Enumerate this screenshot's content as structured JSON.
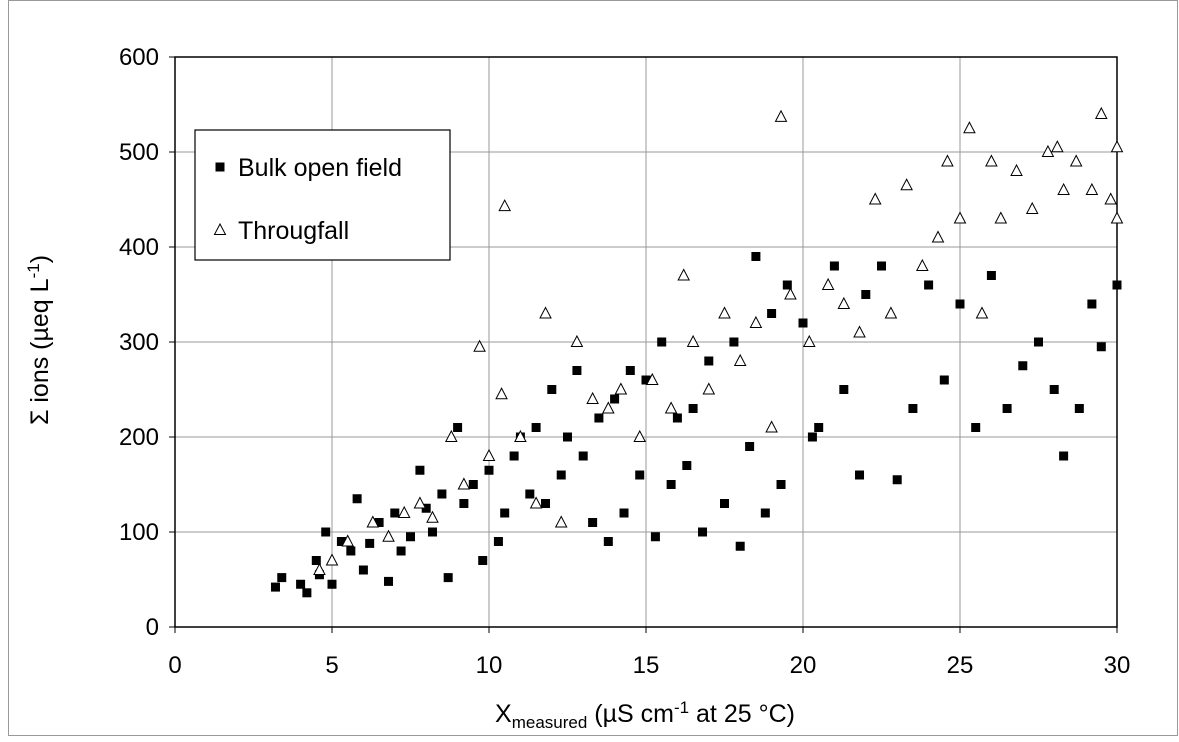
{
  "chart_data": {
    "type": "scatter",
    "xlabel": {
      "main": "X",
      "sub": "measured",
      "rest": " (µS cm",
      "sup": "-1",
      "end": " at 25 °C)"
    },
    "ylabel": {
      "main": "Σ ions  (µeq L",
      "sup": "-1",
      "end": ")"
    },
    "xlim": [
      0,
      30
    ],
    "xticks": [
      0,
      5,
      10,
      15,
      20,
      25,
      30
    ],
    "ylim": [
      0,
      600
    ],
    "yticks": [
      0,
      100,
      200,
      300,
      400,
      500,
      600
    ],
    "grid": true,
    "legend": "upper left",
    "series": [
      {
        "name": "Bulk open field",
        "color": "#000000",
        "marker": "square",
        "x": [
          3.2,
          3.4,
          4.0,
          4.2,
          4.5,
          4.6,
          4.8,
          5.0,
          5.3,
          5.6,
          5.8,
          6.0,
          6.2,
          6.5,
          6.8,
          7.0,
          7.2,
          7.5,
          7.8,
          8.0,
          8.2,
          8.5,
          8.7,
          9.0,
          9.2,
          9.5,
          9.8,
          10.0,
          10.3,
          10.5,
          10.8,
          11.0,
          11.3,
          11.5,
          11.8,
          12.0,
          12.3,
          12.5,
          12.8,
          13.0,
          13.3,
          13.5,
          13.8,
          14.0,
          14.3,
          14.5,
          14.8,
          15.0,
          15.3,
          15.5,
          15.8,
          16.0,
          16.3,
          16.5,
          16.8,
          17.0,
          17.5,
          17.8,
          18.0,
          18.3,
          18.5,
          18.8,
          19.0,
          19.3,
          19.5,
          20.0,
          20.3,
          20.5,
          21.0,
          21.3,
          21.8,
          22.0,
          22.5,
          23.0,
          23.5,
          24.0,
          24.5,
          25.0,
          25.5,
          26.0,
          26.5,
          27.0,
          27.5,
          28.0,
          28.3,
          28.8,
          29.2,
          29.5,
          30.0
        ],
        "values": [
          42,
          52,
          45,
          36,
          70,
          55,
          100,
          45,
          90,
          80,
          135,
          60,
          88,
          110,
          48,
          120,
          80,
          95,
          165,
          125,
          100,
          140,
          52,
          210,
          130,
          150,
          70,
          165,
          90,
          120,
          180,
          200,
          140,
          210,
          130,
          250,
          160,
          200,
          270,
          180,
          110,
          220,
          90,
          240,
          120,
          270,
          160,
          260,
          95,
          300,
          150,
          220,
          170,
          230,
          100,
          280,
          130,
          300,
          85,
          190,
          390,
          120,
          330,
          150,
          360,
          320,
          200,
          210,
          380,
          250,
          160,
          350,
          380,
          155,
          230,
          360,
          260,
          340,
          210,
          370,
          230,
          275,
          300,
          250,
          180,
          230,
          340,
          295,
          360
        ]
      },
      {
        "name": "Througfall",
        "color": "#000000",
        "marker": "triangle",
        "x": [
          4.6,
          5.0,
          5.5,
          6.3,
          6.8,
          7.3,
          7.8,
          8.2,
          8.8,
          9.2,
          9.7,
          10.0,
          10.4,
          10.5,
          11.0,
          11.5,
          11.8,
          12.3,
          12.8,
          13.3,
          13.8,
          14.2,
          14.8,
          15.2,
          15.8,
          16.2,
          16.5,
          17.0,
          17.5,
          18.0,
          18.5,
          19.0,
          19.3,
          19.6,
          20.2,
          20.8,
          21.3,
          21.8,
          22.3,
          22.8,
          23.3,
          23.8,
          24.3,
          24.6,
          25.0,
          25.3,
          25.7,
          26.0,
          26.3,
          26.8,
          27.3,
          27.8,
          28.1,
          28.3,
          28.7,
          29.2,
          29.5,
          29.8,
          30.0,
          30.0
        ],
        "values": [
          60,
          70,
          90,
          110,
          95,
          120,
          130,
          115,
          200,
          150,
          295,
          180,
          245,
          443,
          200,
          130,
          330,
          110,
          300,
          240,
          230,
          250,
          200,
          260,
          230,
          370,
          300,
          250,
          330,
          280,
          320,
          210,
          537,
          350,
          300,
          360,
          340,
          310,
          450,
          330,
          465,
          380,
          410,
          490,
          430,
          525,
          330,
          490,
          430,
          480,
          440,
          500,
          505,
          460,
          490,
          460,
          540,
          450,
          505,
          430
        ]
      }
    ]
  }
}
